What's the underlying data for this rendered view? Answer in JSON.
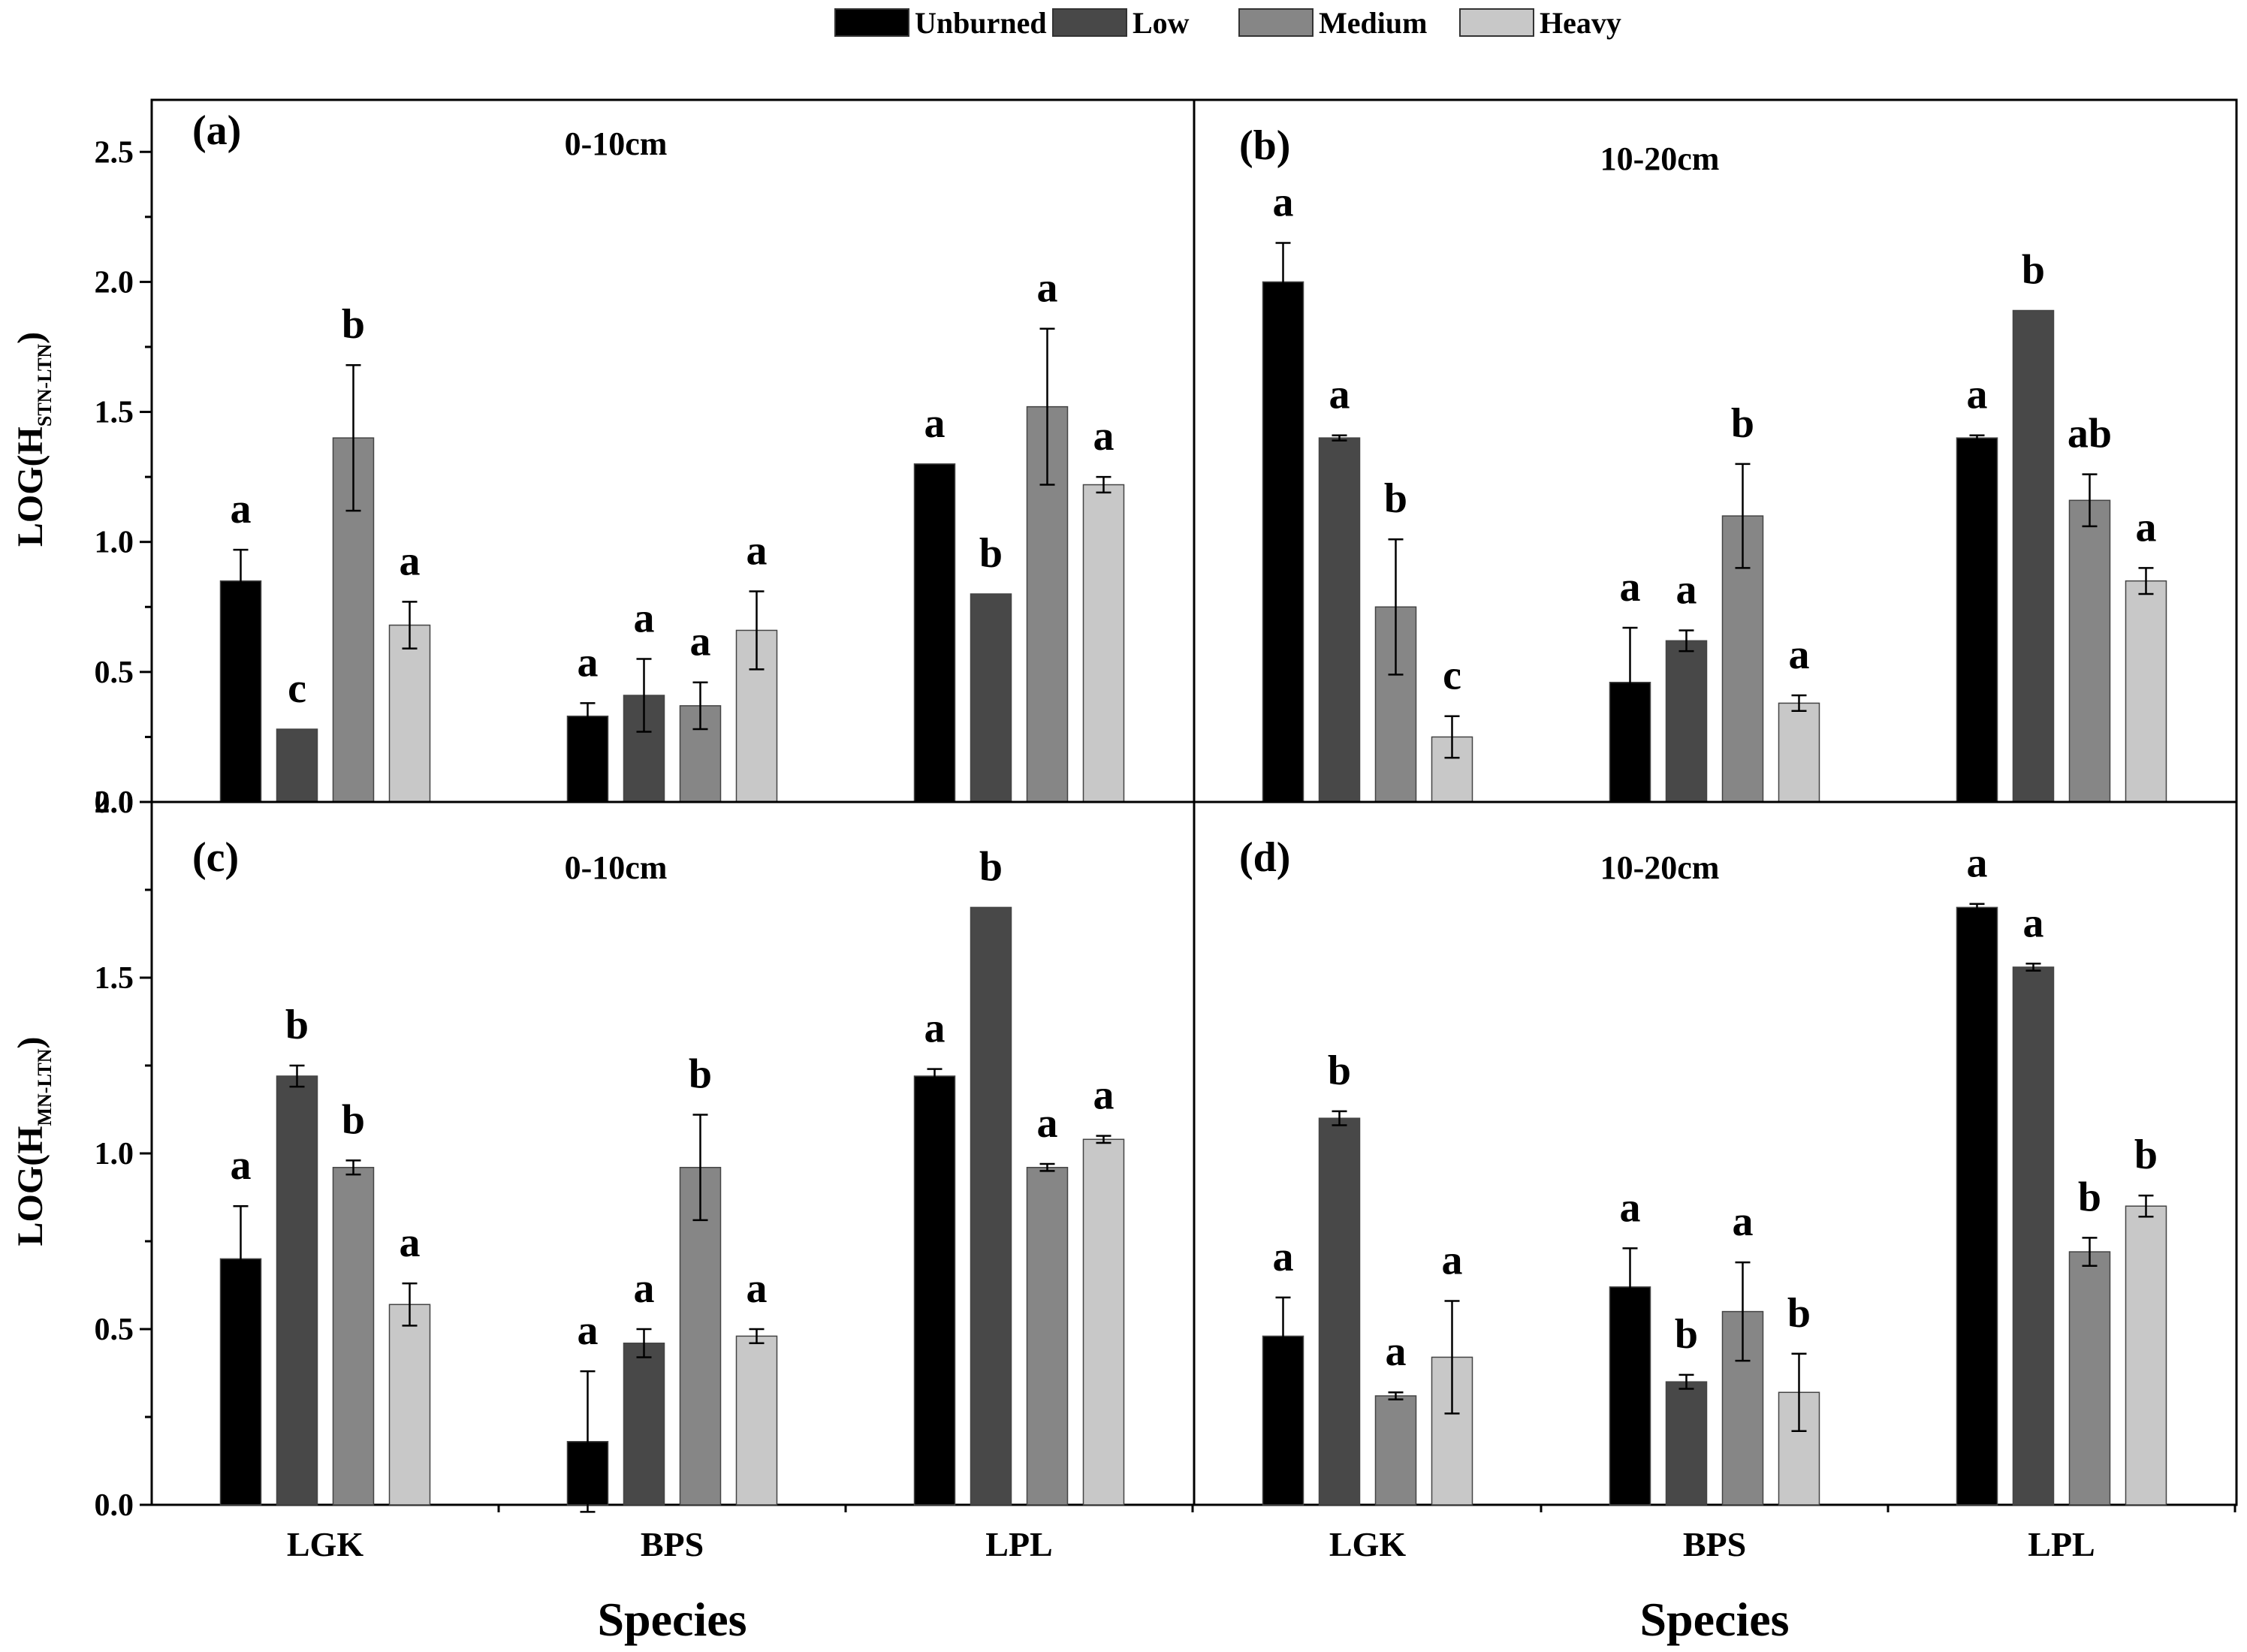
{
  "legend": [
    {
      "name": "Unburned",
      "color": "#000000"
    },
    {
      "name": "Low",
      "color": "#484848"
    },
    {
      "name": "Medium",
      "color": "#868686"
    },
    {
      "name": "Heavy",
      "color": "#c8c8c8"
    }
  ],
  "axes": {
    "xlabel": "Species",
    "ylabel_top": {
      "main": "LOG(H",
      "sub": "STN-LTN",
      "close": ")"
    },
    "ylabel_bottom": {
      "main": "LOG(H",
      "sub": "MN-LTN",
      "close": ")"
    }
  },
  "chart_data": [
    {
      "type": "bar",
      "id": "a",
      "tag": "(a)",
      "depth": "0-10cm",
      "categories": [
        "LGK",
        "BPS",
        "LPL"
      ],
      "ylim": [
        0,
        2.7
      ],
      "yticks": [
        "0.0",
        "0.5",
        "1.0",
        "1.5",
        "2.0",
        "2.5"
      ],
      "series": [
        {
          "name": "Unburned",
          "values": [
            0.85,
            0.33,
            1.3
          ],
          "errors": [
            0.12,
            0.05,
            0.0
          ],
          "letters": [
            "a",
            "a",
            "a"
          ]
        },
        {
          "name": "Low",
          "values": [
            0.28,
            0.41,
            0.8
          ],
          "errors": [
            0.0,
            0.14,
            0.0
          ],
          "letters": [
            "c",
            "a",
            "b"
          ]
        },
        {
          "name": "Medium",
          "values": [
            1.4,
            0.37,
            1.52
          ],
          "errors": [
            0.28,
            0.09,
            0.3
          ],
          "letters": [
            "b",
            "a",
            "a"
          ]
        },
        {
          "name": "Heavy",
          "values": [
            0.68,
            0.66,
            1.22
          ],
          "errors": [
            0.09,
            0.15,
            0.03
          ],
          "letters": [
            "a",
            "a",
            "a"
          ]
        }
      ]
    },
    {
      "type": "bar",
      "id": "b",
      "tag": "(b)",
      "depth": "10-20cm",
      "categories": [
        "LGK",
        "BPS",
        "LPL"
      ],
      "ylim": [
        0,
        2.7
      ],
      "yticks": [],
      "series": [
        {
          "name": "Unburned",
          "values": [
            2.0,
            0.46,
            1.4
          ],
          "errors": [
            0.15,
            0.21,
            0.01
          ],
          "letters": [
            "a",
            "a",
            "a"
          ]
        },
        {
          "name": "Low",
          "values": [
            1.4,
            0.62,
            1.89
          ],
          "errors": [
            0.01,
            0.04,
            0.0
          ],
          "letters": [
            "a",
            "a",
            "b"
          ]
        },
        {
          "name": "Medium",
          "values": [
            0.75,
            1.1,
            1.16
          ],
          "errors": [
            0.26,
            0.2,
            0.1
          ],
          "letters": [
            "b",
            "b",
            "ab"
          ]
        },
        {
          "name": "Heavy",
          "values": [
            0.25,
            0.38,
            0.85
          ],
          "errors": [
            0.08,
            0.03,
            0.05
          ],
          "letters": [
            "c",
            "a",
            "a"
          ]
        }
      ]
    },
    {
      "type": "bar",
      "id": "c",
      "tag": "(c)",
      "depth": "0-10cm",
      "categories": [
        "LGK",
        "BPS",
        "LPL"
      ],
      "ylim": [
        0,
        2.0
      ],
      "yticks": [
        "0.0",
        "0.5",
        "1.0",
        "1.5",
        "2.0"
      ],
      "series": [
        {
          "name": "Unburned",
          "values": [
            0.7,
            0.18,
            1.22
          ],
          "errors": [
            0.15,
            0.2,
            0.02
          ],
          "letters": [
            "a",
            "a",
            "a"
          ]
        },
        {
          "name": "Low",
          "values": [
            1.22,
            0.46,
            1.7
          ],
          "errors": [
            0.03,
            0.04,
            0.0
          ],
          "letters": [
            "b",
            "a",
            "b"
          ]
        },
        {
          "name": "Medium",
          "values": [
            0.96,
            0.96,
            0.96
          ],
          "errors": [
            0.02,
            0.15,
            0.01
          ],
          "letters": [
            "b",
            "b",
            "a"
          ]
        },
        {
          "name": "Heavy",
          "values": [
            0.57,
            0.48,
            1.04
          ],
          "errors": [
            0.06,
            0.02,
            0.01
          ],
          "letters": [
            "a",
            "a",
            "a"
          ]
        }
      ]
    },
    {
      "type": "bar",
      "id": "d",
      "tag": "(d)",
      "depth": "10-20cm",
      "categories": [
        "LGK",
        "BPS",
        "LPL"
      ],
      "ylim": [
        0,
        2.0
      ],
      "yticks": [],
      "series": [
        {
          "name": "Unburned",
          "values": [
            0.48,
            0.62,
            1.7
          ],
          "errors": [
            0.11,
            0.11,
            0.01
          ],
          "letters": [
            "a",
            "a",
            "a"
          ]
        },
        {
          "name": "Low",
          "values": [
            1.1,
            0.35,
            1.53
          ],
          "errors": [
            0.02,
            0.02,
            0.01
          ],
          "letters": [
            "b",
            "b",
            "a"
          ]
        },
        {
          "name": "Medium",
          "values": [
            0.31,
            0.55,
            0.72
          ],
          "errors": [
            0.01,
            0.14,
            0.04
          ],
          "letters": [
            "a",
            "a",
            "b"
          ]
        },
        {
          "name": "Heavy",
          "values": [
            0.42,
            0.32,
            0.85
          ],
          "errors": [
            0.16,
            0.11,
            0.03
          ],
          "letters": [
            "a",
            "b",
            "b"
          ]
        }
      ]
    }
  ]
}
